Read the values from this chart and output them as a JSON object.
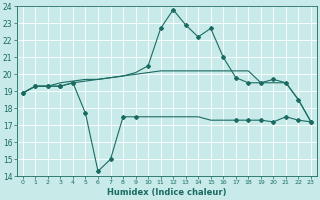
{
  "title": "",
  "xlabel": "Humidex (Indice chaleur)",
  "ylabel": "",
  "bg_color": "#c8eae8",
  "grid_color": "#ffffff",
  "line_color": "#1a6b62",
  "xlim": [
    -0.5,
    23.5
  ],
  "ylim": [
    14,
    24
  ],
  "xticks": [
    0,
    1,
    2,
    3,
    4,
    5,
    6,
    7,
    8,
    9,
    10,
    11,
    12,
    13,
    14,
    15,
    16,
    17,
    18,
    19,
    20,
    21,
    22,
    23
  ],
  "yticks": [
    14,
    15,
    16,
    17,
    18,
    19,
    20,
    21,
    22,
    23,
    24
  ],
  "line1_x": [
    0,
    1,
    2,
    3,
    4,
    5,
    6,
    7,
    8,
    9,
    10,
    11,
    12,
    13,
    14,
    15,
    16,
    17,
    18,
    19,
    20,
    21,
    22,
    23
  ],
  "line1_y": [
    18.9,
    19.3,
    19.3,
    19.3,
    19.5,
    17.7,
    14.3,
    15.0,
    17.5,
    17.5,
    17.5,
    17.5,
    17.5,
    17.5,
    17.5,
    17.3,
    17.3,
    17.3,
    17.3,
    17.3,
    17.2,
    17.5,
    17.3,
    17.2
  ],
  "line2_x": [
    0,
    1,
    2,
    3,
    4,
    5,
    6,
    7,
    8,
    9,
    10,
    11,
    12,
    13,
    14,
    15,
    16,
    17,
    18,
    19,
    20,
    21,
    22,
    23
  ],
  "line2_y": [
    18.9,
    19.3,
    19.3,
    19.5,
    19.6,
    19.7,
    19.7,
    19.8,
    19.9,
    20.0,
    20.1,
    20.2,
    20.2,
    20.2,
    20.2,
    20.2,
    20.2,
    20.2,
    20.2,
    19.5,
    19.5,
    19.5,
    18.5,
    17.2
  ],
  "line3_x": [
    0,
    1,
    2,
    3,
    4,
    5,
    6,
    7,
    8,
    9,
    10,
    11,
    12,
    13,
    14,
    15,
    16,
    17,
    18,
    19,
    20,
    21,
    22,
    23
  ],
  "line3_y": [
    18.9,
    19.3,
    19.3,
    19.3,
    19.5,
    19.6,
    19.7,
    19.8,
    19.9,
    20.1,
    20.5,
    22.7,
    23.8,
    22.9,
    22.2,
    22.7,
    21.0,
    19.8,
    19.5,
    19.5,
    19.7,
    19.5,
    18.5,
    17.2
  ],
  "line1_marker_x": [
    0,
    1,
    2,
    3,
    4,
    5,
    6,
    7,
    8,
    9,
    17,
    18,
    19,
    20,
    21,
    22,
    23
  ],
  "line1_marker_y": [
    18.9,
    19.3,
    19.3,
    19.3,
    19.5,
    17.7,
    14.3,
    15.0,
    17.5,
    17.5,
    17.3,
    17.3,
    17.3,
    17.2,
    17.5,
    17.3,
    17.2
  ],
  "line3_marker_x": [
    0,
    1,
    2,
    3,
    4,
    10,
    11,
    12,
    13,
    14,
    15,
    16,
    17,
    18,
    19,
    20,
    21,
    22,
    23
  ],
  "line3_marker_y": [
    18.9,
    19.3,
    19.3,
    19.3,
    19.5,
    20.5,
    22.7,
    23.8,
    22.9,
    22.2,
    22.7,
    21.0,
    19.8,
    19.5,
    19.5,
    19.7,
    19.5,
    18.5,
    17.2
  ]
}
